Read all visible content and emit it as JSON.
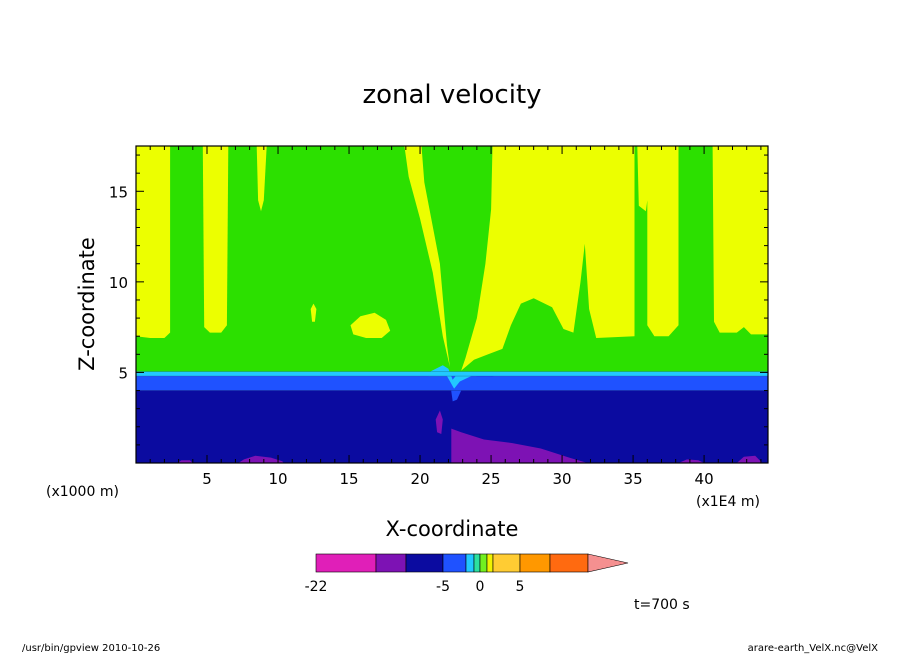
{
  "chart_data": {
    "type": "heatmap",
    "title": "zonal velocity",
    "xlabel": "X-coordinate",
    "ylabel": "Z-coordinate",
    "x_unit_note": "(x1E4 m)",
    "y_unit_note": "(x1000 m)",
    "xlim": [
      0,
      44.5
    ],
    "ylim": [
      0,
      17.5
    ],
    "x_ticks": [
      5,
      10,
      15,
      20,
      25,
      30,
      35,
      40
    ],
    "y_ticks": [
      5,
      10,
      15
    ],
    "x_tick_labels": [
      "5",
      "10",
      "15",
      "20",
      "25",
      "30",
      "35",
      "40"
    ],
    "y_tick_labels": [
      "5",
      "10",
      "15"
    ],
    "colorbar": {
      "colors": [
        "#e01fb8",
        "#7d12b4",
        "#0b0ba0",
        "#1f52ff",
        "#22c8ff",
        "#2ce0a0",
        "#72f020",
        "#f0f200",
        "#ffcc33",
        "#ff9800",
        "#ff6a10",
        "#ff1a1a",
        "#f59090"
      ],
      "tick_labels": [
        "-22",
        "-5",
        "0",
        "5"
      ],
      "extend": "max"
    },
    "fields": {
      "zone_colors": {
        "purple": "#7d12b4",
        "navy": "#0b0ba0",
        "blue": "#1f52ff",
        "cyan": "#22c8ff",
        "green": "#2ce000",
        "yellow": "#ecff00"
      },
      "layers_z": [
        {
          "name": "navy",
          "from": 0,
          "to": 4.0
        },
        {
          "name": "blue",
          "from": 4.0,
          "to": 4.8
        },
        {
          "name": "cyan",
          "from": 4.8,
          "to": 5.05
        },
        {
          "name": "green",
          "from": 5.05,
          "to": 17.5
        }
      ]
    },
    "time_label": "t=700 s"
  },
  "footer": {
    "left": "/usr/bin/gpview   2010-10-26",
    "right": "arare-earth_VelX.nc@VelX"
  }
}
